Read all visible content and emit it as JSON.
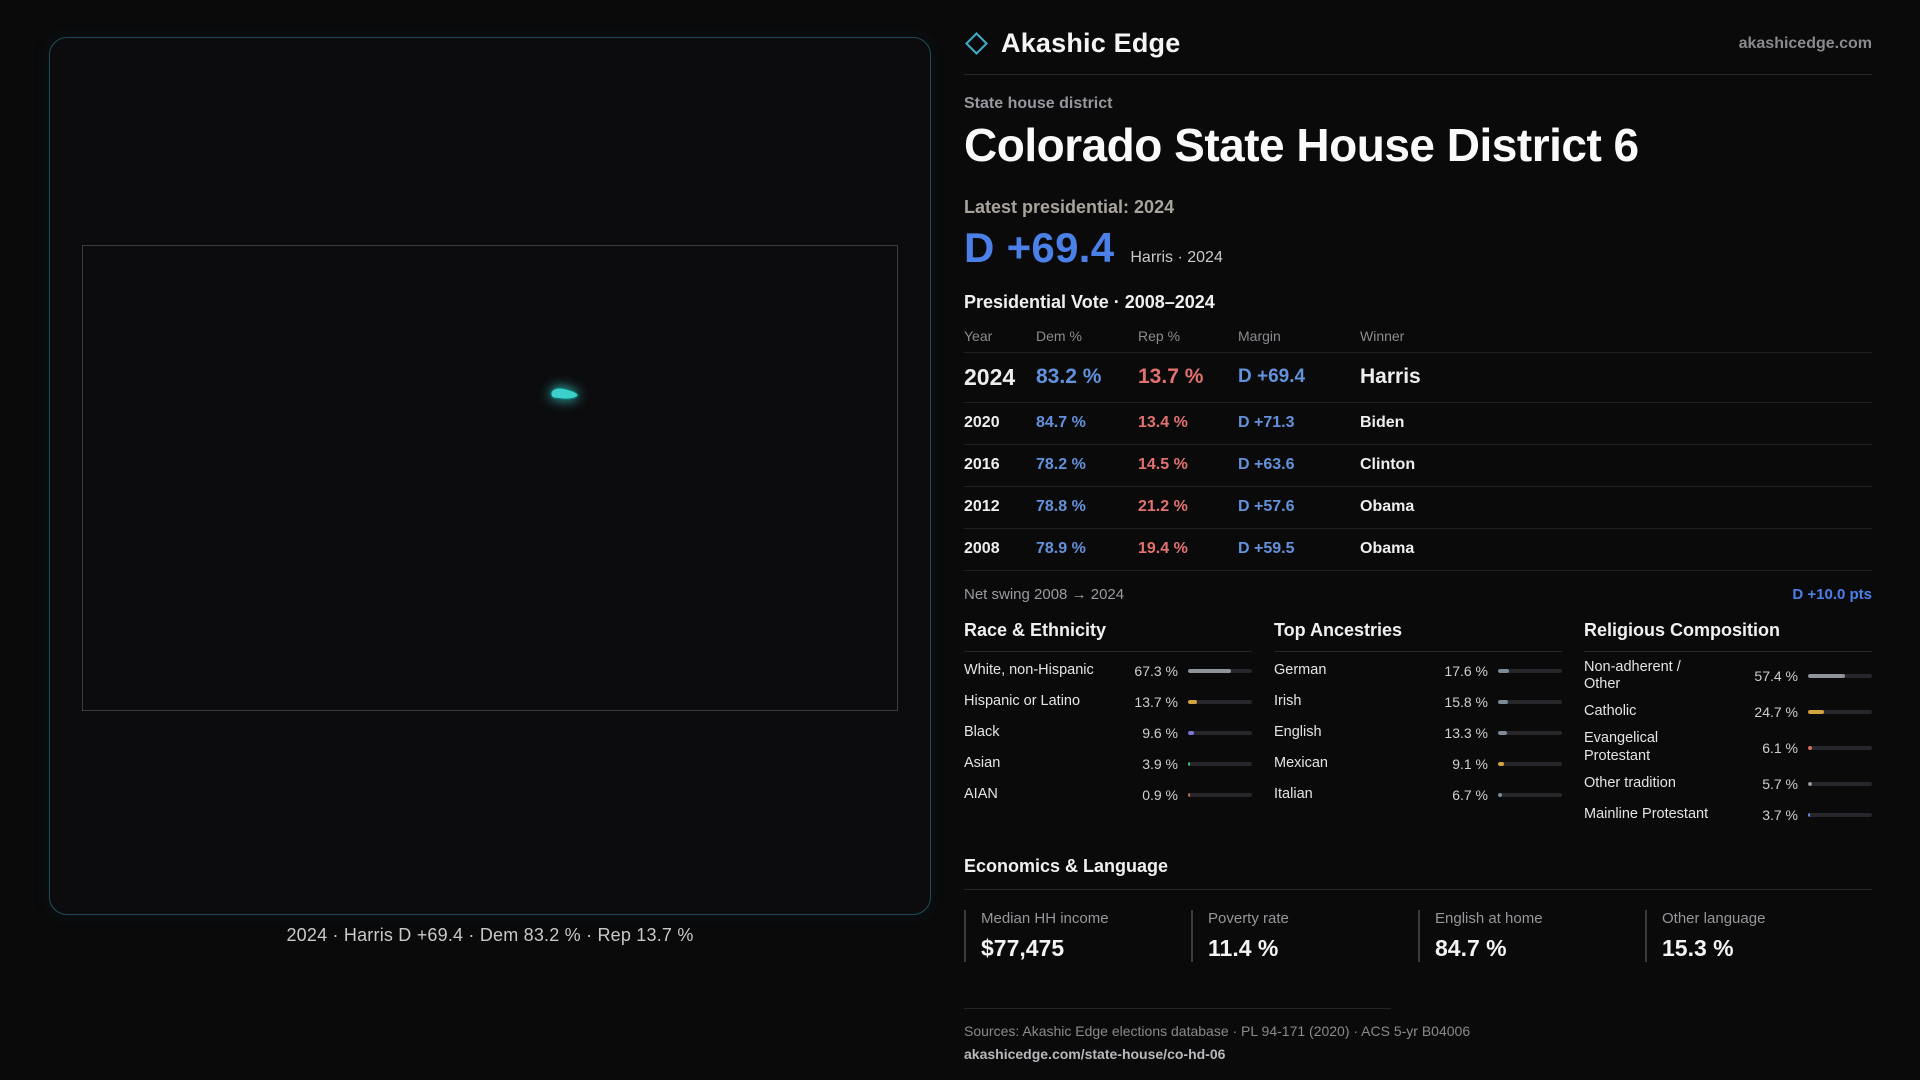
{
  "colors": {
    "dem": "#6292dc",
    "rep": "#e2726e",
    "headline_margin": "#4a80e8",
    "map_accent": "#3bd0cc"
  },
  "header": {
    "brand": "Akashic Edge",
    "domain": "akashicedge.com"
  },
  "map": {
    "caption": "2024 · Harris D +69.4 · Dem 83.2 % · Rep 13.7 %"
  },
  "page": {
    "kicker": "State house district",
    "title": "Colorado State House District 6",
    "latest_label": "Latest presidential: 2024",
    "headline_margin": "D +69.4",
    "headline_context": "Harris · 2024",
    "table_title": "Presidential Vote · 2008–2024",
    "net_swing_label": "Net swing 2008 → 2024",
    "net_swing_value": "D +10.0 pts"
  },
  "vote_table": {
    "columns": [
      "Year",
      "Dem %",
      "Rep %",
      "Margin",
      "Winner"
    ],
    "rows": [
      {
        "year": "2024",
        "dem": "83.2 %",
        "rep": "13.7 %",
        "margin": "D +69.4",
        "winner": "Harris"
      },
      {
        "year": "2020",
        "dem": "84.7 %",
        "rep": "13.4 %",
        "margin": "D +71.3",
        "winner": "Biden"
      },
      {
        "year": "2016",
        "dem": "78.2 %",
        "rep": "14.5 %",
        "margin": "D +63.6",
        "winner": "Clinton"
      },
      {
        "year": "2012",
        "dem": "78.8 %",
        "rep": "21.2 %",
        "margin": "D +57.6",
        "winner": "Obama"
      },
      {
        "year": "2008",
        "dem": "78.9 %",
        "rep": "19.4 %",
        "margin": "D +59.5",
        "winner": "Obama"
      }
    ]
  },
  "demographics": [
    {
      "title": "Race & Ethnicity",
      "rows": [
        {
          "label": "White, non-Hispanic",
          "value": "67.3 %",
          "pct": 67.3,
          "color": "#8f949b"
        },
        {
          "label": "Hispanic or Latino",
          "value": "13.7 %",
          "pct": 13.7,
          "color": "#d4a43e"
        },
        {
          "label": "Black",
          "value": "9.6 %",
          "pct": 9.6,
          "color": "#7d76d9"
        },
        {
          "label": "Asian",
          "value": "3.9 %",
          "pct": 3.9,
          "color": "#3fbf7f"
        },
        {
          "label": "AIAN",
          "value": "0.9 %",
          "pct": 0.9,
          "color": "#c96a4a"
        }
      ]
    },
    {
      "title": "Top Ancestries",
      "rows": [
        {
          "label": "German",
          "value": "17.6 %",
          "pct": 17.6,
          "color": "#7e8a98"
        },
        {
          "label": "Irish",
          "value": "15.8 %",
          "pct": 15.8,
          "color": "#7e8a98"
        },
        {
          "label": "English",
          "value": "13.3 %",
          "pct": 13.3,
          "color": "#7e8a98"
        },
        {
          "label": "Mexican",
          "value": "9.1 %",
          "pct": 9.1,
          "color": "#d4a43e"
        },
        {
          "label": "Italian",
          "value": "6.7 %",
          "pct": 6.7,
          "color": "#7e8a98"
        }
      ]
    },
    {
      "title": "Religious Composition",
      "rows": [
        {
          "label": "Non-adherent / Other",
          "value": "57.4 %",
          "pct": 57.4,
          "color": "#8f949b"
        },
        {
          "label": "Catholic",
          "value": "24.7 %",
          "pct": 24.7,
          "color": "#d4a43e"
        },
        {
          "label": "Evangelical Protestant",
          "value": "6.1 %",
          "pct": 6.1,
          "color": "#d96a5e"
        },
        {
          "label": "Other tradition",
          "value": "5.7 %",
          "pct": 5.7,
          "color": "#8f949b"
        },
        {
          "label": "Mainline Protestant",
          "value": "3.7 %",
          "pct": 3.7,
          "color": "#5b8de0"
        }
      ]
    }
  ],
  "economics": {
    "title": "Economics & Language",
    "stats": [
      {
        "label": "Median HH income",
        "value": "$77,475"
      },
      {
        "label": "Poverty rate",
        "value": "11.4 %"
      },
      {
        "label": "English at home",
        "value": "84.7 %"
      },
      {
        "label": "Other language",
        "value": "15.3 %"
      }
    ]
  },
  "footer": {
    "sources": "Sources: Akashic Edge elections database · PL 94-171 (2020) · ACS 5-yr B04006",
    "permalink": "akashicedge.com/state-house/co-hd-06"
  }
}
